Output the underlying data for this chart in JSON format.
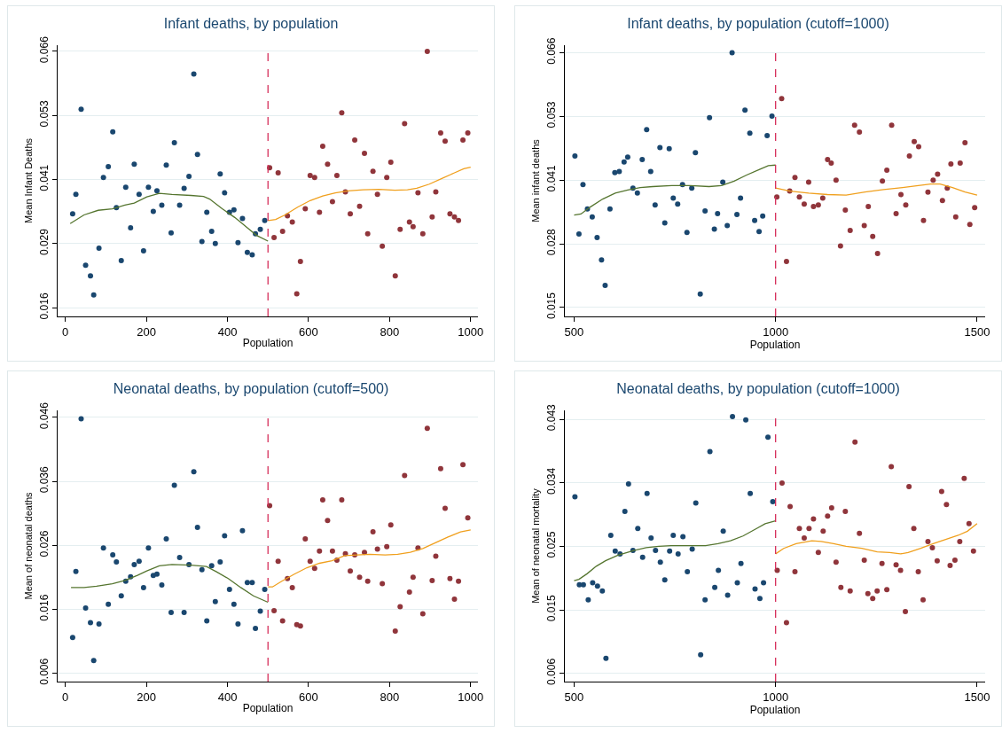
{
  "chart_data": [
    {
      "type": "scatter",
      "title": "Infant deaths, by population",
      "xlabel": "Population",
      "ylabel": "Mean Infant Deaths",
      "xlim": [
        -19,
        1018
      ],
      "xticks": [
        0,
        200,
        400,
        600,
        800,
        1000
      ],
      "ylim": [
        0.0143,
        0.0672
      ],
      "yticks": [
        {
          "value": 0.016,
          "label": "0.016"
        },
        {
          "value": 0.0285,
          "label": "0.029"
        },
        {
          "value": 0.041,
          "label": "0.041"
        },
        {
          "value": 0.0535,
          "label": "0.053"
        },
        {
          "value": 0.066,
          "label": "0.066"
        }
      ],
      "grid": "y",
      "marker": "circle",
      "ref_lines": [
        {
          "axis": "x",
          "value": 500,
          "color": "#d62f5b",
          "line_style": "dashed"
        }
      ],
      "series": [
        {
          "color": "#1a476f",
          "x": [
            18,
            26,
            39,
            50,
            62,
            70,
            83,
            94,
            106,
            117,
            126,
            138,
            149,
            161,
            170,
            182,
            193,
            205,
            217,
            226,
            238,
            249,
            261,
            269,
            282,
            293,
            305,
            317,
            326,
            337,
            349,
            361,
            370,
            382,
            393,
            405,
            416,
            426,
            437,
            449,
            461,
            469,
            481,
            492
          ],
          "values": [
            0.0343,
            0.0381,
            0.0547,
            0.0243,
            0.0222,
            0.0185,
            0.0276,
            0.0414,
            0.0435,
            0.0503,
            0.0355,
            0.0252,
            0.0395,
            0.0316,
            0.044,
            0.0381,
            0.0271,
            0.0395,
            0.0348,
            0.0388,
            0.036,
            0.0438,
            0.0306,
            0.0482,
            0.036,
            0.0393,
            0.0416,
            0.0616,
            0.0459,
            0.0289,
            0.0346,
            0.0309,
            0.0285,
            0.0421,
            0.0384,
            0.0346,
            0.0351,
            0.0287,
            0.0334,
            0.0268,
            0.0263,
            0.0304,
            0.0313,
            0.033
          ]
        },
        {
          "color": "#90353b",
          "x": [
            504,
            515,
            525,
            536,
            548,
            560,
            571,
            580,
            592,
            604,
            615,
            627,
            635,
            647,
            659,
            670,
            682,
            691,
            703,
            714,
            726,
            738,
            746,
            759,
            770,
            782,
            793,
            803,
            814,
            826,
            837,
            849,
            858,
            870,
            882,
            893,
            905,
            914,
            926,
            937,
            949,
            960,
            970,
            981,
            993
          ],
          "values": [
            0.0433,
            0.0297,
            0.0423,
            0.0309,
            0.0339,
            0.0327,
            0.0187,
            0.025,
            0.0353,
            0.0418,
            0.0414,
            0.0346,
            0.0475,
            0.044,
            0.0367,
            0.0418,
            0.054,
            0.0386,
            0.0343,
            0.0487,
            0.0358,
            0.0461,
            0.0304,
            0.0426,
            0.0381,
            0.028,
            0.0414,
            0.0444,
            0.0222,
            0.0313,
            0.0519,
            0.0327,
            0.0318,
            0.0384,
            0.0304,
            0.066,
            0.0337,
            0.0386,
            0.0501,
            0.0485,
            0.0343,
            0.0337,
            0.033,
            0.0487,
            0.0501
          ]
        },
        {
          "type": "line",
          "marker": "none",
          "color": "#55752f",
          "x": [
            12,
            46,
            81,
            116,
            147,
            170,
            201,
            232,
            263,
            310,
            341,
            356,
            387,
            418,
            449,
            472,
            500
          ],
          "values": [
            0.0324,
            0.0341,
            0.035,
            0.0353,
            0.036,
            0.0364,
            0.0376,
            0.0383,
            0.0381,
            0.0379,
            0.0377,
            0.0372,
            0.0353,
            0.0336,
            0.0316,
            0.0301,
            0.029
          ]
        },
        {
          "type": "line",
          "marker": "none",
          "color": "#f0a01e",
          "x": [
            500,
            519,
            542,
            573,
            604,
            635,
            666,
            697,
            735,
            774,
            813,
            844,
            867,
            898,
            929,
            960,
            983,
            1000
          ],
          "values": [
            0.033,
            0.0332,
            0.0341,
            0.0356,
            0.0369,
            0.0378,
            0.0384,
            0.0388,
            0.039,
            0.0391,
            0.0389,
            0.039,
            0.0393,
            0.0401,
            0.0412,
            0.0423,
            0.0431,
            0.0434
          ]
        }
      ]
    },
    {
      "type": "scatter",
      "title": "Infant deaths, by population (cutoff=1000)",
      "xlabel": "Population",
      "ylabel": "Mean infant deaths",
      "xlim": [
        477,
        1520
      ],
      "xticks": [
        500,
        1000,
        1500
      ],
      "ylim": [
        0.0132,
        0.0675
      ],
      "yticks": [
        {
          "value": 0.015,
          "label": "0.015"
        },
        {
          "value": 0.02775,
          "label": "0.028"
        },
        {
          "value": 0.0405,
          "label": "0.041"
        },
        {
          "value": 0.05325,
          "label": "0.053"
        },
        {
          "value": 0.066,
          "label": "0.066"
        }
      ],
      "grid": "y",
      "marker": "circle",
      "ref_lines": [
        {
          "axis": "x",
          "value": 1000,
          "color": "#d62f5b",
          "line_style": "dashed"
        }
      ],
      "series": [
        {
          "color": "#1a476f",
          "x": [
            502,
            512,
            522,
            533,
            545,
            557,
            568,
            577,
            589,
            601,
            612,
            624,
            633,
            646,
            657,
            669,
            680,
            690,
            701,
            713,
            725,
            736,
            746,
            757,
            769,
            780,
            792,
            801,
            813,
            825,
            836,
            848,
            856,
            869,
            880,
            892,
            904,
            913,
            924,
            936,
            948,
            959,
            968,
            979,
            991
          ],
          "values": [
            0.0453,
            0.0297,
            0.0396,
            0.0347,
            0.0331,
            0.029,
            0.0245,
            0.0194,
            0.0347,
            0.042,
            0.0422,
            0.0441,
            0.0451,
            0.0389,
            0.0379,
            0.0446,
            0.0506,
            0.0422,
            0.0355,
            0.047,
            0.0319,
            0.0468,
            0.0369,
            0.0357,
            0.0396,
            0.03,
            0.0389,
            0.046,
            0.0177,
            0.0343,
            0.053,
            0.0307,
            0.0338,
            0.0401,
            0.0314,
            0.066,
            0.0336,
            0.0369,
            0.0545,
            0.0499,
            0.0324,
            0.0302,
            0.0333,
            0.0494,
            0.0533
          ]
        },
        {
          "color": "#90353b",
          "x": [
            1003,
            1015,
            1027,
            1035,
            1048,
            1059,
            1071,
            1082,
            1094,
            1106,
            1117,
            1129,
            1138,
            1150,
            1161,
            1173,
            1185,
            1196,
            1208,
            1220,
            1230,
            1241,
            1253,
            1265,
            1276,
            1288,
            1299,
            1311,
            1323,
            1332,
            1344,
            1355,
            1367,
            1378,
            1391,
            1402,
            1414,
            1426,
            1435,
            1447,
            1458,
            1470,
            1482,
            1494
          ],
          "values": [
            0.0371,
            0.0568,
            0.0242,
            0.0383,
            0.041,
            0.0371,
            0.0357,
            0.0401,
            0.0352,
            0.0355,
            0.0369,
            0.0446,
            0.0439,
            0.0405,
            0.0273,
            0.0345,
            0.0304,
            0.0515,
            0.0501,
            0.0314,
            0.0352,
            0.0292,
            0.0258,
            0.0403,
            0.0425,
            0.0515,
            0.0338,
            0.0376,
            0.0355,
            0.0453,
            0.0482,
            0.0472,
            0.0324,
            0.0381,
            0.0405,
            0.0417,
            0.0364,
            0.0389,
            0.0437,
            0.0331,
            0.0439,
            0.048,
            0.0316,
            0.035
          ]
        },
        {
          "type": "line",
          "marker": "none",
          "color": "#55752f",
          "x": [
            500,
            517,
            540,
            571,
            602,
            633,
            664,
            695,
            742,
            788,
            835,
            866,
            897,
            928,
            959,
            982,
            1000
          ],
          "values": [
            0.0335,
            0.0337,
            0.0351,
            0.0367,
            0.0379,
            0.0385,
            0.039,
            0.0392,
            0.0394,
            0.0394,
            0.0392,
            0.0394,
            0.0403,
            0.0415,
            0.0426,
            0.0434,
            0.0435
          ]
        },
        {
          "type": "line",
          "marker": "none",
          "color": "#f0a01e",
          "x": [
            1000,
            1036,
            1082,
            1129,
            1175,
            1222,
            1268,
            1315,
            1354,
            1385,
            1408,
            1439,
            1470,
            1500
          ],
          "values": [
            0.0389,
            0.0383,
            0.0379,
            0.0376,
            0.0375,
            0.0381,
            0.0386,
            0.039,
            0.0394,
            0.0397,
            0.0397,
            0.039,
            0.0381,
            0.0375
          ]
        }
      ]
    },
    {
      "type": "scatter",
      "title": "Neonatal deaths, by population (cutoff=500)",
      "xlabel": "Population",
      "ylabel": "Mean of neonatal deaths",
      "xlim": [
        -19,
        1018
      ],
      "xticks": [
        0,
        200,
        400,
        600,
        800,
        1000
      ],
      "ylim": [
        0.0047,
        0.0471
      ],
      "yticks": [
        {
          "value": 0.006,
          "label": "0.006"
        },
        {
          "value": 0.016,
          "label": "0.016"
        },
        {
          "value": 0.026,
          "label": "0.026"
        },
        {
          "value": 0.036,
          "label": "0.036"
        },
        {
          "value": 0.046,
          "label": "0.046"
        }
      ],
      "grid": "y",
      "marker": "circle",
      "ref_lines": [
        {
          "axis": "x",
          "value": 500,
          "color": "#d62f5b",
          "line_style": "dashed"
        }
      ],
      "series": [
        {
          "color": "#1a476f",
          "x": [
            18,
            26,
            39,
            50,
            62,
            70,
            83,
            94,
            106,
            117,
            126,
            138,
            149,
            161,
            170,
            182,
            193,
            205,
            217,
            226,
            238,
            249,
            261,
            269,
            282,
            293,
            305,
            317,
            326,
            337,
            349,
            361,
            370,
            382,
            393,
            405,
            416,
            426,
            437,
            449,
            461,
            469,
            481,
            492
          ],
          "values": [
            0.0116,
            0.0219,
            0.0458,
            0.0162,
            0.0139,
            0.008,
            0.0137,
            0.0256,
            0.0168,
            0.0245,
            0.0234,
            0.0181,
            0.0204,
            0.0211,
            0.023,
            0.0235,
            0.0194,
            0.0256,
            0.0213,
            0.0215,
            0.0198,
            0.027,
            0.0155,
            0.0354,
            0.0241,
            0.0155,
            0.023,
            0.0375,
            0.0288,
            0.0222,
            0.0142,
            0.0228,
            0.0172,
            0.0234,
            0.0275,
            0.0191,
            0.0168,
            0.0137,
            0.0283,
            0.0202,
            0.0202,
            0.013,
            0.0157,
            0.0191
          ]
        },
        {
          "color": "#90353b",
          "x": [
            504,
            515,
            525,
            536,
            548,
            560,
            571,
            580,
            592,
            604,
            615,
            627,
            635,
            647,
            659,
            670,
            682,
            691,
            703,
            714,
            726,
            738,
            746,
            759,
            770,
            782,
            793,
            803,
            814,
            826,
            837,
            849,
            858,
            870,
            882,
            893,
            905,
            914,
            926,
            937,
            949,
            960,
            970,
            981,
            993
          ],
          "values": [
            0.0322,
            0.0158,
            0.0235,
            0.0142,
            0.0208,
            0.0194,
            0.0136,
            0.0134,
            0.027,
            0.0235,
            0.0224,
            0.0251,
            0.0331,
            0.0299,
            0.0251,
            0.0237,
            0.0331,
            0.0247,
            0.022,
            0.0245,
            0.021,
            0.0249,
            0.0204,
            0.0281,
            0.0254,
            0.02,
            0.0258,
            0.0292,
            0.0126,
            0.0164,
            0.0369,
            0.0187,
            0.021,
            0.0256,
            0.0153,
            0.0443,
            0.0205,
            0.0243,
            0.038,
            0.0318,
            0.0208,
            0.0176,
            0.0204,
            0.0386,
            0.0303
          ]
        },
        {
          "type": "line",
          "marker": "none",
          "color": "#55752f",
          "x": [
            14,
            46,
            77,
            116,
            147,
            178,
            201,
            232,
            263,
            310,
            348,
            372,
            402,
            433,
            464,
            500
          ],
          "values": [
            0.0194,
            0.0194,
            0.0196,
            0.02,
            0.0205,
            0.0213,
            0.022,
            0.0228,
            0.023,
            0.0229,
            0.0227,
            0.0219,
            0.0208,
            0.0194,
            0.0181,
            0.0171
          ]
        },
        {
          "type": "line",
          "marker": "none",
          "color": "#f0a01e",
          "x": [
            500,
            511,
            534,
            565,
            596,
            627,
            658,
            689,
            720,
            751,
            789,
            820,
            851,
            882,
            913,
            944,
            975,
            1000
          ],
          "values": [
            0.0195,
            0.0195,
            0.0204,
            0.0215,
            0.0225,
            0.0232,
            0.0236,
            0.0244,
            0.0245,
            0.0246,
            0.0245,
            0.0246,
            0.0249,
            0.0255,
            0.0264,
            0.0273,
            0.0281,
            0.0284
          ]
        }
      ]
    },
    {
      "type": "scatter",
      "title": "Neonatal deaths, by population (cutoff=1000)",
      "xlabel": "Population",
      "ylabel": "Mean of neonatal mortality",
      "xlim": [
        477,
        1520
      ],
      "xticks": [
        500,
        1000,
        1500
      ],
      "ylim": [
        0.0048,
        0.0443
      ],
      "yticks": [
        {
          "value": 0.006,
          "label": "0.006"
        },
        {
          "value": 0.01525,
          "label": "0.015"
        },
        {
          "value": 0.0245,
          "label": "0.025"
        },
        {
          "value": 0.03375,
          "label": "0.034"
        },
        {
          "value": 0.043,
          "label": "0.043"
        }
      ],
      "grid": "y",
      "marker": "circle",
      "ref_lines": [
        {
          "axis": "x",
          "value": 1000,
          "color": "#d62f5b",
          "line_style": "dashed"
        }
      ],
      "series": [
        {
          "color": "#1a476f",
          "x": [
            502,
            513,
            523,
            535,
            546,
            558,
            570,
            579,
            591,
            602,
            614,
            626,
            635,
            646,
            658,
            670,
            681,
            691,
            702,
            714,
            725,
            737,
            746,
            758,
            770,
            781,
            793,
            802,
            814,
            825,
            837,
            849,
            858,
            870,
            881,
            893,
            905,
            914,
            926,
            937,
            949,
            961,
            970,
            981,
            993
          ],
          "values": [
            0.0317,
            0.0189,
            0.0189,
            0.0167,
            0.0192,
            0.0187,
            0.018,
            0.0082,
            0.0261,
            0.0238,
            0.0234,
            0.0296,
            0.0336,
            0.0239,
            0.0271,
            0.0229,
            0.0322,
            0.0257,
            0.0239,
            0.0222,
            0.0196,
            0.0238,
            0.0261,
            0.0234,
            0.0259,
            0.0208,
            0.0241,
            0.0308,
            0.0087,
            0.0167,
            0.0383,
            0.0185,
            0.021,
            0.0267,
            0.0174,
            0.0434,
            0.0192,
            0.022,
            0.0429,
            0.0322,
            0.0183,
            0.0169,
            0.0192,
            0.0404,
            0.031
          ]
        },
        {
          "color": "#90353b",
          "x": [
            1004,
            1016,
            1027,
            1036,
            1048,
            1059,
            1071,
            1083,
            1094,
            1106,
            1118,
            1129,
            1139,
            1150,
            1162,
            1173,
            1185,
            1197,
            1208,
            1220,
            1229,
            1241,
            1252,
            1264,
            1276,
            1287,
            1299,
            1310,
            1322,
            1331,
            1343,
            1354,
            1366,
            1378,
            1389,
            1401,
            1412,
            1424,
            1433,
            1445,
            1457,
            1468,
            1480,
            1491
          ],
          "values": [
            0.021,
            0.0337,
            0.0134,
            0.0303,
            0.0208,
            0.0271,
            0.0257,
            0.0271,
            0.0285,
            0.0236,
            0.0267,
            0.0289,
            0.0301,
            0.0222,
            0.0185,
            0.0296,
            0.018,
            0.0397,
            0.0264,
            0.0225,
            0.0176,
            0.0169,
            0.018,
            0.022,
            0.0182,
            0.0361,
            0.0218,
            0.021,
            0.015,
            0.0332,
            0.0271,
            0.0208,
            0.0167,
            0.0252,
            0.0243,
            0.0224,
            0.0325,
            0.0306,
            0.0217,
            0.0225,
            0.0252,
            0.0344,
            0.0278,
            0.0238
          ]
        },
        {
          "type": "line",
          "marker": "none",
          "color": "#55752f",
          "x": [
            500,
            512,
            532,
            555,
            578,
            609,
            648,
            679,
            710,
            741,
            788,
            826,
            857,
            888,
            919,
            950,
            974,
            1000
          ],
          "values": [
            0.0195,
            0.0197,
            0.0205,
            0.0216,
            0.0224,
            0.0232,
            0.0239,
            0.0243,
            0.0245,
            0.0246,
            0.0246,
            0.0246,
            0.0249,
            0.0253,
            0.026,
            0.027,
            0.0278,
            0.0282
          ]
        },
        {
          "type": "line",
          "marker": "none",
          "color": "#f0a01e",
          "x": [
            1000,
            1020,
            1051,
            1090,
            1113,
            1144,
            1175,
            1214,
            1252,
            1283,
            1310,
            1329,
            1360,
            1391,
            1422,
            1453,
            1476,
            1500
          ],
          "values": [
            0.0234,
            0.0242,
            0.0249,
            0.0253,
            0.0252,
            0.0249,
            0.0245,
            0.0242,
            0.0237,
            0.0236,
            0.0234,
            0.0236,
            0.0242,
            0.0249,
            0.0255,
            0.0261,
            0.0267,
            0.0278
          ]
        }
      ]
    }
  ]
}
